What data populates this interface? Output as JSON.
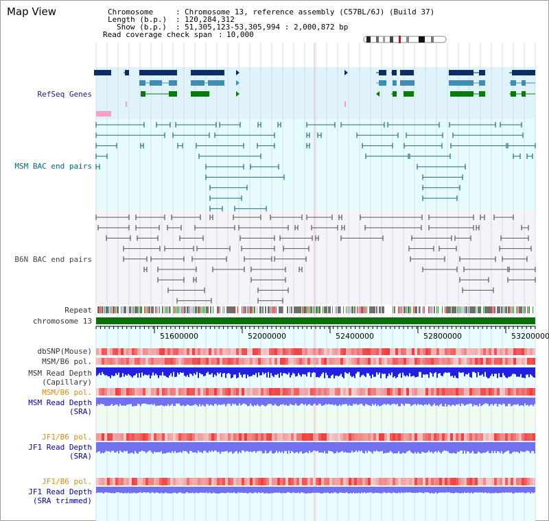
{
  "window": {
    "title": "Map View"
  },
  "info": {
    "chromosome_key": "Chromosome",
    "chromosome_val": "Chromosome 13, reference assembly (C57BL/6J) (Build 37)",
    "length_key": "Length (b.p.)",
    "length_val": "120,284,312",
    "show_key": "Show (b.p.)",
    "show_val": "51,305,123-53,305,994 : 2,000,872 bp",
    "coverage_key": "Read coverage check span",
    "coverage_val": "10,000"
  },
  "tracks": {
    "refseq": "RefSeq Genes",
    "msm_bac": "MSM BAC end pairs",
    "b6n_bac": "B6N BAC end pairs",
    "repeat": "Repeat",
    "chromosome": "chromosome 13",
    "dbsnp": "dbSNP(Mouse)",
    "msm_b6_pol": "MSM/B6 pol.",
    "msm_depth_cap_1": "MSM Read Depth",
    "msm_depth_cap_2": "(Capillary)",
    "msm_b6_pol2": "MSM/B6 pol.",
    "msm_depth_sra_1": "MSM Read Depth",
    "msm_depth_sra_2": "(SRA)",
    "jf1_b6_pol": "JF1/B6 pol.",
    "jf1_depth_sra_1": "JF1 Read Depth",
    "jf1_depth_sra_2": "(SRA)",
    "jf1_b6_pol2": "JF1/B6 pol.",
    "jf1_depth_trim_1": "JF1 Read Depth",
    "jf1_depth_trim_2": "(SRA trimmed)"
  },
  "ruler": {
    "ticks": [
      "51600000",
      "52000000",
      "52400000",
      "52800000",
      "53200000"
    ]
  },
  "colors": {
    "refseq_bg": "#dff3fb",
    "msm_bg": "#e6fbfb",
    "b6n_bg": "#f4f4f8",
    "gene_navy": "#0b2d63",
    "gene_teal": "#3f8db5",
    "gene_green": "#0a7a0a",
    "msm_line": "#1e6a80",
    "b6n_line": "#555555",
    "chrom_green": "#0a6e0a",
    "pol_red": "#e84040",
    "depth_blue": "#2020e0",
    "depth_purple": "#7070f0"
  }
}
